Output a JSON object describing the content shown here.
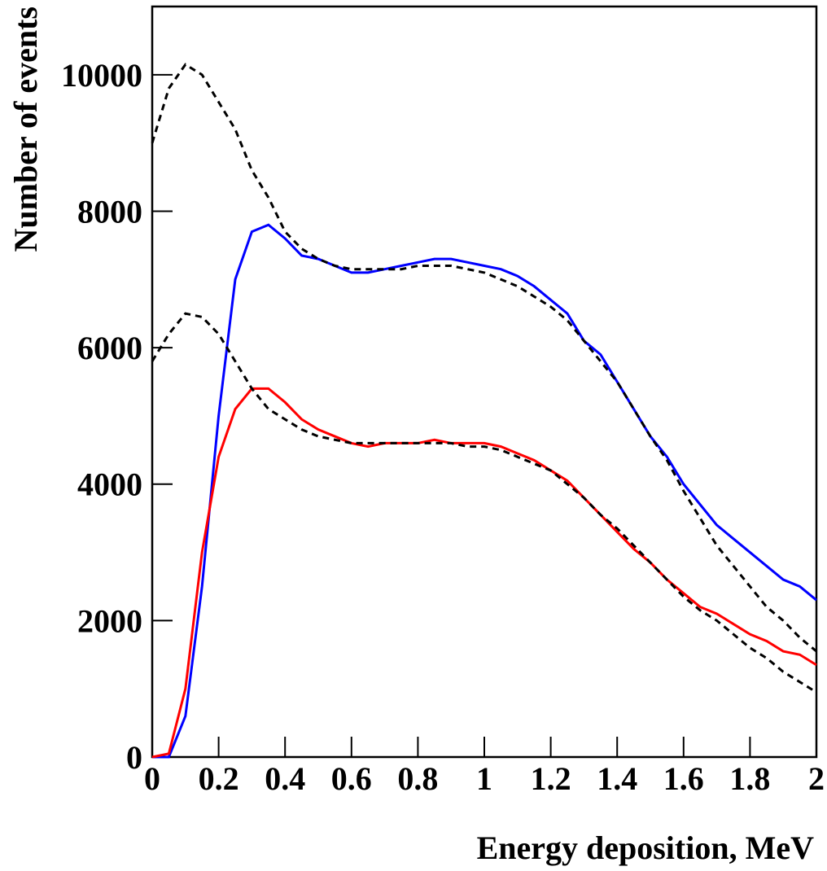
{
  "chart_data": {
    "type": "line",
    "x_label": "Energy deposition, MeV",
    "y_label": "Number of events",
    "x": [
      0,
      0.05,
      0.1,
      0.15,
      0.2,
      0.25,
      0.3,
      0.35,
      0.4,
      0.45,
      0.5,
      0.55,
      0.6,
      0.65,
      0.7,
      0.75,
      0.8,
      0.85,
      0.9,
      0.95,
      1.0,
      1.05,
      1.1,
      1.15,
      1.2,
      1.25,
      1.3,
      1.35,
      1.4,
      1.45,
      1.5,
      1.55,
      1.6,
      1.65,
      1.7,
      1.75,
      1.8,
      1.85,
      1.9,
      1.95,
      2.0
    ],
    "series": [
      {
        "color": "#0000ff",
        "style": "solid",
        "values": [
          0,
          0,
          600,
          2500,
          5000,
          7000,
          7700,
          7800,
          7600,
          7350,
          7300,
          7200,
          7100,
          7100,
          7150,
          7200,
          7250,
          7300,
          7300,
          7250,
          7200,
          7150,
          7050,
          6900,
          6700,
          6500,
          6100,
          5900,
          5500,
          5100,
          4700,
          4400,
          4000,
          3700,
          3400,
          3200,
          3000,
          2800,
          2600,
          2500,
          2300
        ]
      },
      {
        "color": "#ff0000",
        "style": "solid",
        "values": [
          0,
          50,
          1000,
          3000,
          4400,
          5100,
          5400,
          5400,
          5200,
          4950,
          4800,
          4700,
          4600,
          4550,
          4600,
          4600,
          4600,
          4650,
          4600,
          4600,
          4600,
          4550,
          4450,
          4350,
          4200,
          4050,
          3800,
          3550,
          3300,
          3050,
          2850,
          2600,
          2400,
          2200,
          2100,
          1950,
          1800,
          1700,
          1550,
          1500,
          1350
        ]
      },
      {
        "color": "#000000",
        "style": "dashed",
        "values": [
          9000,
          9800,
          10150,
          10000,
          9600,
          9200,
          8600,
          8200,
          7700,
          7450,
          7300,
          7200,
          7150,
          7150,
          7150,
          7150,
          7200,
          7200,
          7200,
          7150,
          7100,
          7000,
          6900,
          6750,
          6600,
          6400,
          6100,
          5800,
          5500,
          5100,
          4700,
          4350,
          3900,
          3500,
          3100,
          2800,
          2500,
          2200,
          2000,
          1750,
          1550
        ]
      },
      {
        "color": "#000000",
        "style": "dashed",
        "values": [
          5800,
          6200,
          6500,
          6450,
          6200,
          5800,
          5400,
          5100,
          4950,
          4800,
          4700,
          4650,
          4600,
          4600,
          4600,
          4600,
          4600,
          4600,
          4600,
          4550,
          4550,
          4500,
          4400,
          4300,
          4200,
          4000,
          3800,
          3550,
          3350,
          3100,
          2850,
          2600,
          2350,
          2150,
          2000,
          1800,
          1600,
          1450,
          1250,
          1100,
          950
        ]
      }
    ],
    "xlim": [
      0,
      2
    ],
    "ylim": [
      0,
      11000
    ],
    "xticks": [
      0,
      0.2,
      0.4,
      0.6,
      0.8,
      1,
      1.2,
      1.4,
      1.6,
      1.8,
      2
    ],
    "yticks": [
      0,
      2000,
      4000,
      6000,
      8000,
      10000
    ],
    "grid": false
  }
}
